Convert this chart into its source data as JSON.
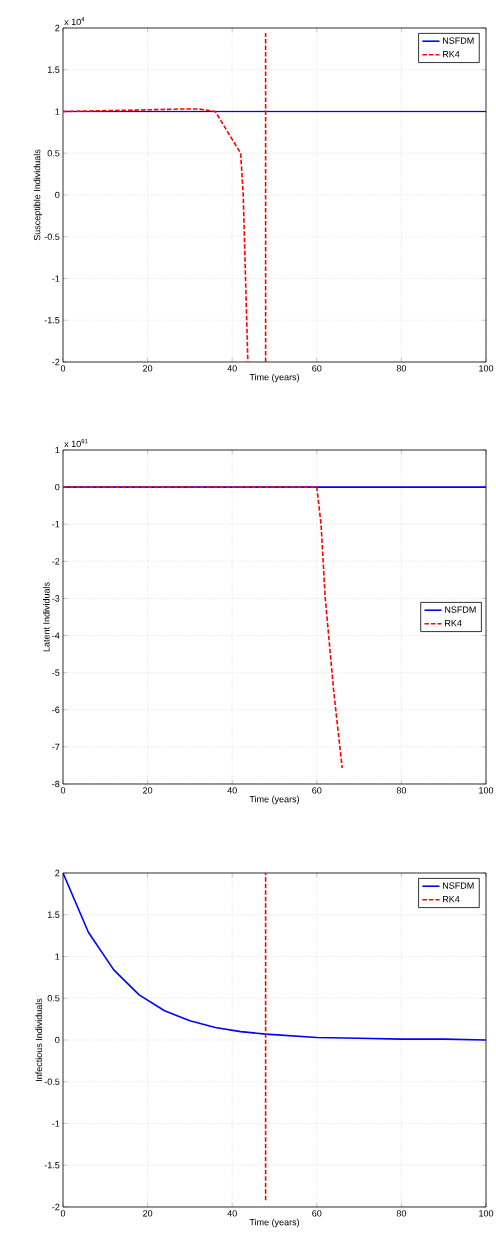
{
  "chart_data": [
    {
      "type": "line",
      "xlabel": "Time (years)",
      "ylabel": "Susceptible Individuals",
      "annotations": [
        "x 10$^{4}$"
      ],
      "series": [
        {
          "name": "NSFDM",
          "color": "#0000ff",
          "line_style": "solid",
          "x": [
            0,
            100
          ],
          "values": [
            1,
            1
          ]
        },
        {
          "name": "RK4",
          "color": "#ff0000",
          "line_style": "dashed",
          "x": [
            0,
            10,
            20,
            28,
            32,
            36,
            39,
            42,
            42.6,
            43.7,
            null,
            47.9,
            47.9
          ],
          "values": [
            1,
            1.01,
            1.02,
            1.03,
            1.03,
            1.0,
            0.75,
            0.5,
            0,
            -2,
            null,
            -2,
            1.94
          ]
        }
      ],
      "xlim": [
        0,
        100
      ],
      "ylim": [
        -2,
        2
      ],
      "xticks": [
        0,
        20,
        40,
        60,
        80,
        100
      ],
      "yticks": [
        -2,
        -1.5,
        -1,
        -0.5,
        0,
        0.5,
        1,
        1.5,
        2
      ],
      "grid": true,
      "legend": "top right",
      "marker": "none"
    },
    {
      "type": "line",
      "xlabel": "Time (years)",
      "ylabel": "Latent Individuals",
      "annotations": [
        "x 10$^{91}$"
      ],
      "series": [
        {
          "name": "NSFDM",
          "color": "#0000ff",
          "line_style": "solid",
          "x": [
            0,
            100
          ],
          "values": [
            0,
            0
          ]
        },
        {
          "name": "RK4",
          "color": "#ff0000",
          "line_style": "dashed",
          "x": [
            0,
            60,
            61,
            62,
            64,
            66
          ],
          "values": [
            0,
            0,
            -1,
            -3,
            -5.5,
            -7.57
          ]
        }
      ],
      "xlim": [
        0,
        100
      ],
      "ylim": [
        -8,
        1
      ],
      "xticks": [
        0,
        20,
        40,
        60,
        80,
        100
      ],
      "yticks": [
        -8,
        -7,
        -6,
        -5,
        -4,
        -3,
        -2,
        -1,
        0,
        1
      ],
      "grid": true,
      "legend": "right",
      "marker": "none"
    },
    {
      "type": "line",
      "xlabel": "Time (years)",
      "ylabel": "Infectious Individuals",
      "series": [
        {
          "name": "NSFDM",
          "color": "#0000ff",
          "line_style": "solid",
          "x": [
            0,
            6,
            12,
            18,
            24,
            30,
            36,
            42,
            48,
            54,
            60,
            70,
            80,
            90,
            100
          ],
          "values": [
            2,
            1.29,
            0.84,
            0.54,
            0.35,
            0.23,
            0.15,
            0.1,
            0.07,
            0.05,
            0.03,
            0.02,
            0.01,
            0.01,
            0
          ]
        },
        {
          "name": "RK4",
          "color": "#ff0000",
          "line_style": "dashed",
          "x": [
            47.9,
            47.9
          ],
          "values": [
            -1.92,
            2
          ]
        }
      ],
      "xlim": [
        0,
        100
      ],
      "ylim": [
        -2,
        2
      ],
      "xticks": [
        0,
        20,
        40,
        60,
        80,
        100
      ],
      "yticks": [
        -2,
        -1.5,
        -1,
        -0.5,
        0,
        0.5,
        1,
        1.5,
        2
      ],
      "grid": true,
      "legend": "top right",
      "marker": "none"
    }
  ]
}
